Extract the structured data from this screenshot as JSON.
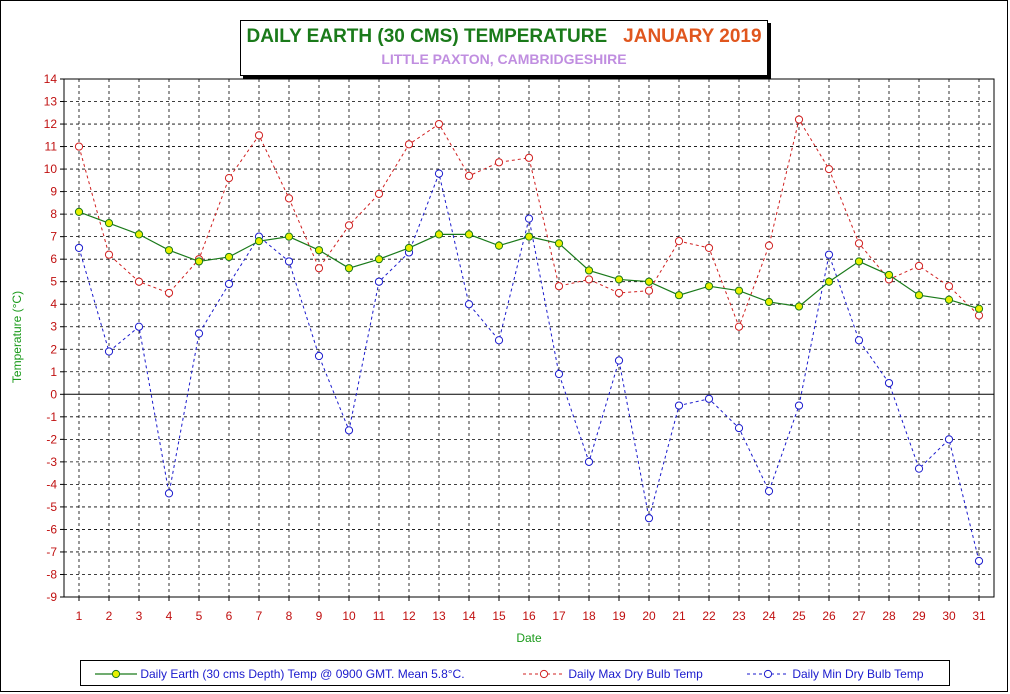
{
  "chart_data": {
    "type": "line",
    "title": "DAILY EARTH (30 CMS) TEMPERATURE",
    "title_period": "JANUARY 2019",
    "subtitle": "LITTLE PAXTON, CAMBRIDGESHIRE",
    "xlabel": "Date",
    "ylabel": "Temperature (°C)",
    "ylim": [
      -9,
      14
    ],
    "xlim": [
      1,
      31
    ],
    "grid": true,
    "legend_position": "bottom",
    "categories": [
      1,
      2,
      3,
      4,
      5,
      6,
      7,
      8,
      9,
      10,
      11,
      12,
      13,
      14,
      15,
      16,
      17,
      18,
      19,
      20,
      21,
      22,
      23,
      24,
      25,
      26,
      27,
      28,
      29,
      30,
      31
    ],
    "series": [
      {
        "name": "Daily Earth (30 cms Depth) Temp @ 0900 GMT. Mean 5.8°C.",
        "color": "#1a7a1a",
        "marker_fill": "#e8f000",
        "style": "solid",
        "values": [
          8.1,
          7.6,
          7.1,
          6.4,
          5.9,
          6.1,
          6.8,
          7.0,
          6.4,
          5.6,
          6.0,
          6.5,
          7.1,
          7.1,
          6.6,
          7.0,
          6.7,
          5.5,
          5.1,
          5.0,
          4.4,
          4.8,
          4.6,
          4.1,
          3.9,
          5.0,
          5.9,
          5.3,
          4.4,
          4.2,
          3.8
        ]
      },
      {
        "name": "Daily Max Dry Bulb Temp",
        "color": "#d02020",
        "marker_fill": "none",
        "style": "dashed",
        "values": [
          11.0,
          6.2,
          5.0,
          4.5,
          6.0,
          9.6,
          11.5,
          8.7,
          5.6,
          7.5,
          8.9,
          11.1,
          12.0,
          9.7,
          10.3,
          10.5,
          4.8,
          5.1,
          4.5,
          4.6,
          6.8,
          6.5,
          3.0,
          6.6,
          12.2,
          10.0,
          6.7,
          5.1,
          5.7,
          4.8,
          3.5
        ]
      },
      {
        "name": "Daily Min Dry Bulb Temp",
        "color": "#1a1acd",
        "marker_fill": "none",
        "style": "dashed",
        "values": [
          6.5,
          1.9,
          3.0,
          -4.4,
          2.7,
          4.9,
          7.0,
          5.9,
          1.7,
          -1.6,
          5.0,
          6.3,
          9.8,
          4.0,
          2.4,
          7.8,
          0.9,
          -3.0,
          1.5,
          -5.5,
          -0.5,
          -0.2,
          -1.5,
          -4.3,
          -0.5,
          6.2,
          2.4,
          0.5,
          -3.3,
          -2.0,
          -7.4
        ]
      }
    ]
  }
}
